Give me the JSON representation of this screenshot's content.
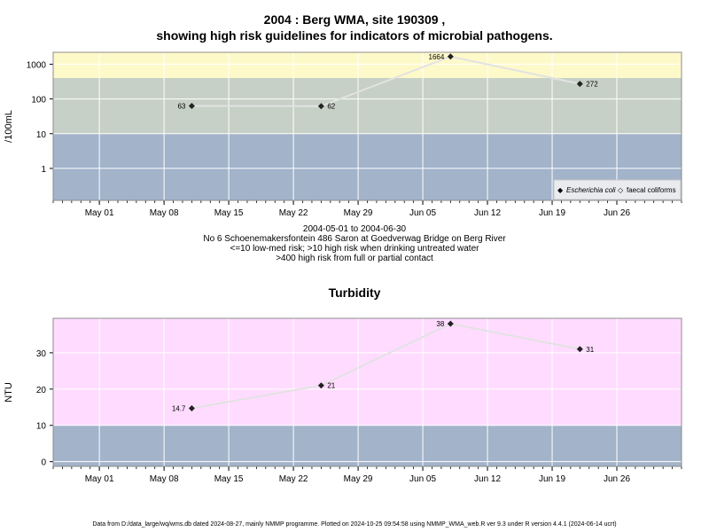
{
  "colors": {
    "band_high": "#fef9c9",
    "band_medium": "#c6d0c6",
    "band_low": "#a2b3ca",
    "band_pink": "#ffdcff",
    "line": "#e2e2e2",
    "grid": "#ffffff",
    "marker": "#222222"
  },
  "main_title_line1": "2004 : Berg WMA, site 190309 ,",
  "main_title_line2": "showing high risk guidelines for indicators of microbial pathogens.",
  "caption_lines": [
    "2004-05-01 to 2004-06-30",
    "No 6 Schoenemakersfontein 486 Saron at Goedverwag Bridge on Berg River",
    "<=10 low-med risk; >10 high risk when drinking untreated water",
    ">400 high risk from full or partial contact"
  ],
  "turbidity_title": "Turbidity",
  "footer": "Data from D:/data_large/wq/wms.db dated 2024-08-27, mainly NMMP programme. Plotted on 2024-10-25 09:54:58 using NMMP_WMA_web.R ver 9.3 under R version 4.4.1 (2024-06-14 ucrt)",
  "legend": {
    "ecoli_label": "Escherichia coli",
    "faecal_label": "faecal coliforms",
    "ecoli_marker": "◆",
    "faecal_marker": "◇"
  },
  "chart_data": [
    {
      "type": "line",
      "name": "microbial",
      "ylabel": "/100mL",
      "y_scale": "log",
      "x_range": [
        "2004-04-26",
        "2004-07-03"
      ],
      "x_ticks": [
        {
          "date": "2004-05-01",
          "label": "May 01"
        },
        {
          "date": "2004-05-08",
          "label": "May 08"
        },
        {
          "date": "2004-05-15",
          "label": "May 15"
        },
        {
          "date": "2004-05-22",
          "label": "May 22"
        },
        {
          "date": "2004-05-29",
          "label": "May 29"
        },
        {
          "date": "2004-06-05",
          "label": "Jun 05"
        },
        {
          "date": "2004-06-12",
          "label": "Jun 12"
        },
        {
          "date": "2004-06-19",
          "label": "Jun 19"
        },
        {
          "date": "2004-06-26",
          "label": "Jun 26"
        }
      ],
      "y_ticks": [
        {
          "value": 1,
          "label": "1"
        },
        {
          "value": 10,
          "label": "10"
        },
        {
          "value": 100,
          "label": "100"
        },
        {
          "value": 1000,
          "label": "1000"
        }
      ],
      "ylim": [
        0.12,
        2200
      ],
      "bands": [
        {
          "from": 0.12,
          "to": 10,
          "color_key": "band_low"
        },
        {
          "from": 10,
          "to": 400,
          "color_key": "band_medium"
        },
        {
          "from": 400,
          "to": 2200,
          "color_key": "band_high"
        }
      ],
      "legend_position": "bottom-right",
      "series": [
        {
          "name": "Escherichia coli",
          "points": [
            {
              "date": "2004-05-11",
              "value": 63,
              "label": "63"
            },
            {
              "date": "2004-05-25",
              "value": 62,
              "label": "62"
            },
            {
              "date": "2004-06-08",
              "value": 1664,
              "label": "1664"
            },
            {
              "date": "2004-06-22",
              "value": 272,
              "label": "272"
            }
          ]
        },
        {
          "name": "faecal coliforms",
          "points": []
        }
      ]
    },
    {
      "type": "line",
      "name": "turbidity",
      "ylabel": "NTU",
      "y_scale": "linear",
      "x_range": [
        "2004-04-26",
        "2004-07-03"
      ],
      "x_ticks": [
        {
          "date": "2004-05-01",
          "label": "May 01"
        },
        {
          "date": "2004-05-08",
          "label": "May 08"
        },
        {
          "date": "2004-05-15",
          "label": "May 15"
        },
        {
          "date": "2004-05-22",
          "label": "May 22"
        },
        {
          "date": "2004-05-29",
          "label": "May 29"
        },
        {
          "date": "2004-06-05",
          "label": "Jun 05"
        },
        {
          "date": "2004-06-12",
          "label": "Jun 12"
        },
        {
          "date": "2004-06-19",
          "label": "Jun 19"
        },
        {
          "date": "2004-06-26",
          "label": "Jun 26"
        }
      ],
      "y_ticks": [
        {
          "value": 0,
          "label": "0"
        },
        {
          "value": 10,
          "label": "10"
        },
        {
          "value": 20,
          "label": "20"
        },
        {
          "value": 30,
          "label": "30"
        }
      ],
      "ylim": [
        -1.3,
        39.5
      ],
      "bands": [
        {
          "from": -1.3,
          "to": 10,
          "color_key": "band_low"
        },
        {
          "from": 10,
          "to": 39.5,
          "color_key": "band_pink"
        }
      ],
      "series": [
        {
          "name": "Turbidity",
          "points": [
            {
              "date": "2004-05-11",
              "value": 14.7,
              "label": "14.7"
            },
            {
              "date": "2004-05-25",
              "value": 21,
              "label": "21"
            },
            {
              "date": "2004-06-08",
              "value": 38,
              "label": "38"
            },
            {
              "date": "2004-06-22",
              "value": 31,
              "label": "31"
            }
          ]
        }
      ]
    }
  ]
}
